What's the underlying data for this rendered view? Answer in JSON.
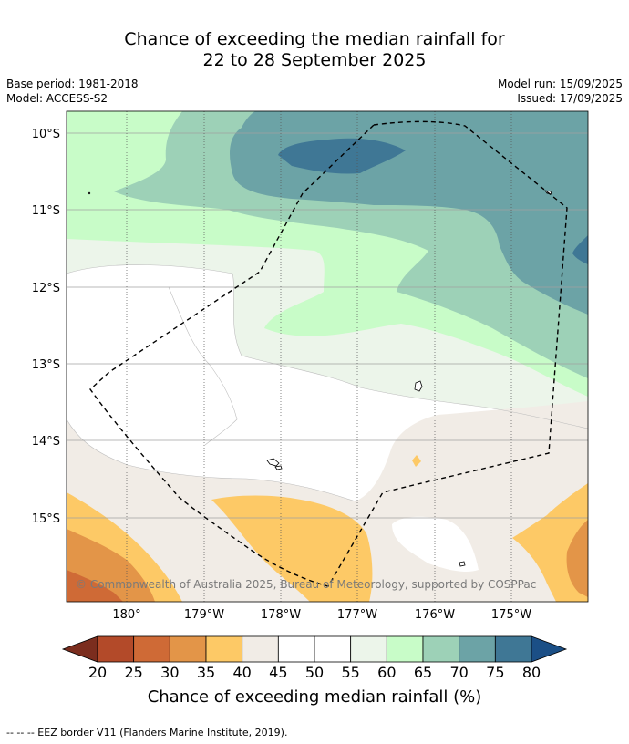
{
  "title": {
    "line1": "Chance of exceeding the median rainfall for",
    "line2": "22 to 28 September 2025"
  },
  "meta": {
    "base_period": "Base period: 1981-2018",
    "model": "Model: ACCESS-S2",
    "model_run": "Model run: 15/09/2025",
    "issued": "Issued: 17/09/2025"
  },
  "map": {
    "lat_labels": [
      "10°S",
      "11°S",
      "12°S",
      "13°S",
      "14°S",
      "15°S"
    ],
    "lon_labels": [
      "180°",
      "179°W",
      "178°W",
      "177°W",
      "176°W",
      "175°W"
    ],
    "copyright": "© Commonwealth of Australia 2025, Bureau of Meteorology, supported by COSPPac",
    "boundary": "EEZ border (dashed)"
  },
  "colorbar": {
    "ticks": [
      "20",
      "25",
      "30",
      "35",
      "40",
      "45",
      "50",
      "55",
      "60",
      "65",
      "70",
      "75",
      "80"
    ],
    "colors": [
      "#7b2d1e",
      "#b34a29",
      "#cf6a36",
      "#e39548",
      "#fdc966",
      "#f1ece6",
      "#ffffff",
      "#ffffff",
      "#ecf5ea",
      "#c8fcc8",
      "#9dd1b7",
      "#6ca3a6",
      "#3f7795",
      "#1b4f86"
    ],
    "label": "Chance of exceeding median rainfall (%)"
  },
  "footnote": "--  --  -- EEZ border V11 (Flanders Marine Institute, 2019)."
}
